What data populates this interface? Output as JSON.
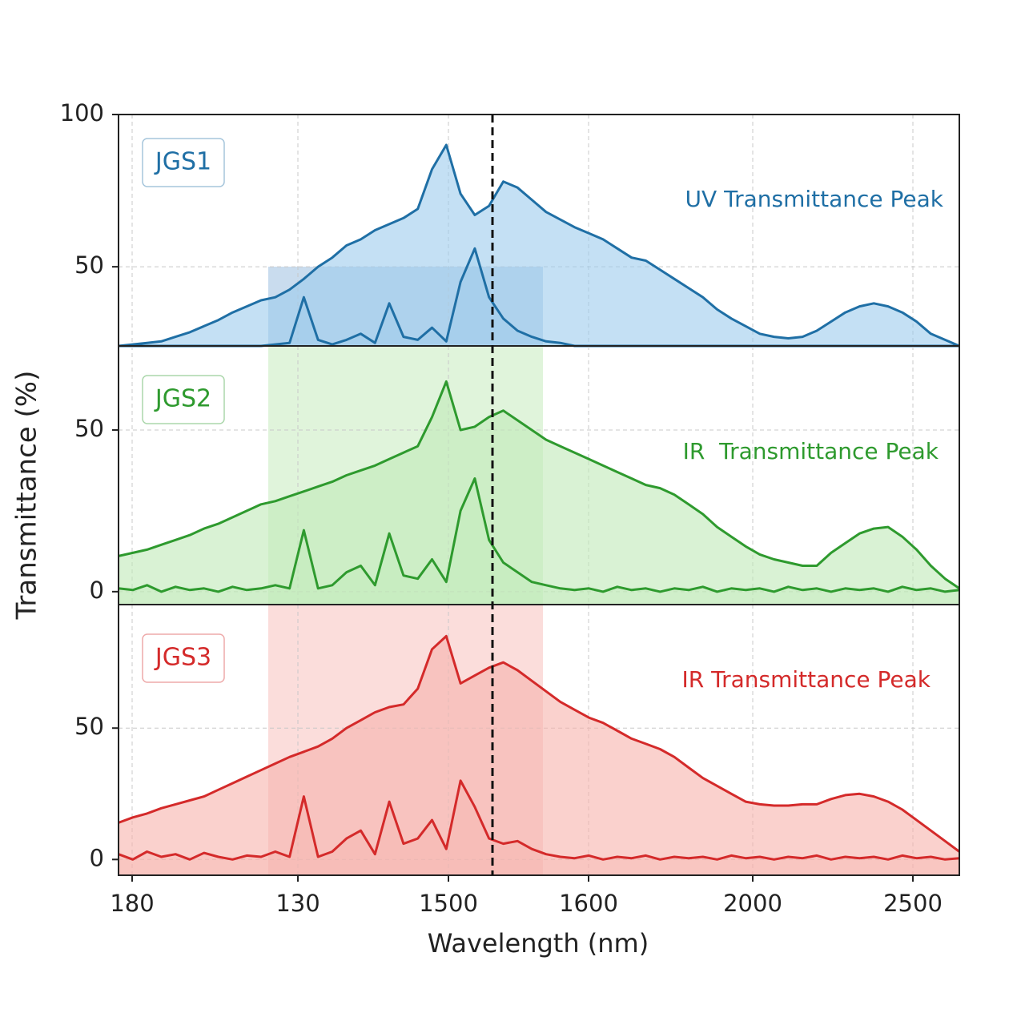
{
  "chart_data": {
    "type": "area",
    "xlabel": "Wavelength (nm)",
    "ylabel": "Transmittance (%)",
    "xticks": [
      "180",
      "130",
      "1500",
      "1600",
      "2000",
      "2500"
    ],
    "grid": true,
    "panels": [
      {
        "name": "JGS1",
        "annotation": "UV Transmittance Peak",
        "color": "#1f6fa5",
        "fill": "#9ccbec",
        "ylim": [
          24,
          100
        ],
        "yticks": [
          50,
          100
        ],
        "series": [
          {
            "values": [
              24,
              24.5,
              25,
              25.5,
              27,
              28.5,
              30.5,
              32.5,
              35,
              37,
              39,
              40,
              42.5,
              46,
              50,
              53,
              57,
              59,
              62,
              64,
              66,
              69,
              82,
              90,
              74,
              67,
              70,
              78,
              76,
              72,
              68,
              65.5,
              63,
              61,
              59,
              56,
              53,
              52,
              49,
              46,
              43,
              40,
              36,
              33,
              30.5,
              28,
              27,
              26.5,
              27,
              29,
              32,
              35,
              37,
              38,
              37,
              35,
              32,
              28,
              26,
              24
            ]
          },
          {
            "values": [
              24,
              24,
              24,
              24,
              24,
              24,
              24,
              24,
              24,
              24,
              24,
              24.5,
              25,
              40,
              26,
              24.5,
              26,
              28,
              25,
              38,
              27,
              26,
              30,
              25.5,
              45,
              56,
              40,
              33,
              29,
              27,
              25.5,
              25,
              24,
              24,
              24,
              24,
              24,
              24,
              24,
              24,
              24,
              24,
              24,
              24,
              24,
              24,
              24,
              24,
              24,
              24,
              24,
              24,
              24,
              24,
              24,
              24,
              24,
              24,
              24,
              24
            ]
          }
        ]
      },
      {
        "name": "JGS2",
        "annotation": "IR  Transmittance Peak",
        "color": "#2e9a2e",
        "fill": "#bfeab8",
        "ylim": [
          -4,
          76
        ],
        "yticks": [
          0,
          50
        ],
        "series": [
          {
            "values": [
              11,
              12,
              13,
              14.5,
              16,
              17.5,
              19.5,
              21,
              23,
              25,
              27,
              28,
              29.5,
              31,
              32.5,
              34,
              36,
              37.5,
              39,
              41,
              43,
              45,
              54,
              65,
              50,
              51,
              54,
              56,
              53,
              50,
              47,
              45,
              43,
              41,
              39,
              37,
              35,
              33,
              32,
              30,
              27,
              24,
              20,
              17,
              14,
              11.5,
              10,
              9,
              8,
              8,
              12,
              15,
              18,
              19.5,
              20,
              17,
              13,
              8,
              4,
              1
            ]
          },
          {
            "values": [
              1,
              0.5,
              2,
              0,
              1.5,
              0.5,
              1,
              0,
              1.5,
              0.5,
              1,
              2,
              1,
              19,
              1,
              2,
              6,
              8,
              2,
              18,
              5,
              4,
              10,
              3,
              25,
              35,
              16,
              9,
              6,
              3,
              2,
              1,
              0.5,
              1,
              0,
              1.5,
              0.5,
              1,
              0,
              1,
              0.5,
              1.5,
              0,
              1,
              0.5,
              1,
              0,
              1.5,
              0.5,
              1,
              0,
              1,
              0.5,
              1,
              0,
              1.5,
              0.5,
              1,
              0,
              0.5
            ]
          }
        ]
      },
      {
        "name": "JGS3",
        "annotation": "IR Transmittance Peak",
        "color": "#d42a2a",
        "fill": "#f7b2ac",
        "ylim": [
          -6,
          97
        ],
        "yticks": [
          0,
          50
        ],
        "series": [
          {
            "values": [
              14,
              16,
              17.5,
              19.5,
              21,
              22.5,
              24,
              26.5,
              29,
              31.5,
              34,
              36.5,
              39,
              41,
              43,
              46,
              50,
              53,
              56,
              58,
              59,
              65,
              80,
              85,
              67,
              70,
              73,
              75,
              72,
              68,
              64,
              60,
              57,
              54,
              52,
              49,
              46,
              44,
              42,
              39,
              35,
              31,
              28,
              25,
              22,
              21,
              20.5,
              20.5,
              21,
              21,
              23,
              24.5,
              25,
              24,
              22,
              19,
              15,
              11,
              7,
              3
            ]
          },
          {
            "values": [
              2,
              0,
              3,
              1,
              2,
              0,
              2.5,
              1,
              0,
              1.5,
              1,
              3,
              1,
              24,
              1,
              3,
              8,
              11,
              2,
              22,
              6,
              8,
              15,
              4,
              30,
              20,
              8,
              6,
              7,
              4,
              2,
              1,
              0.5,
              1.5,
              0,
              1,
              0.5,
              1.5,
              0,
              1,
              0.5,
              1,
              0,
              1.5,
              0.5,
              1,
              0,
              1,
              0.5,
              1.5,
              0,
              1,
              0.5,
              1,
              0,
              1.5,
              0.5,
              1,
              0,
              0.5
            ]
          }
        ]
      }
    ]
  }
}
